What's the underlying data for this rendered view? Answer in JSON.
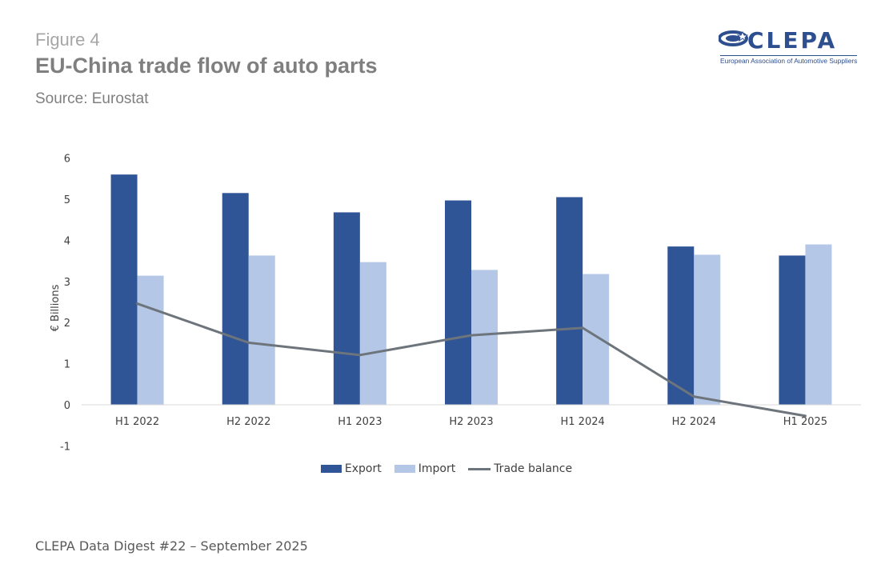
{
  "header": {
    "figure_label": "Figure 4",
    "title": "EU-China trade flow of auto parts",
    "source": "Source: Eurostat"
  },
  "logo": {
    "name": "CLEPA",
    "tagline": "European Association of Automotive Suppliers"
  },
  "footer": {
    "text": "CLEPA Data Digest #22 – September 2025"
  },
  "colors": {
    "export": "#2f5597",
    "import": "#b4c7e7",
    "balance": "#6d747b",
    "axis": "#d9d9d9",
    "text": "#404040"
  },
  "chart_data": {
    "type": "bar",
    "title": "EU-China trade flow of auto parts",
    "xlabel": "",
    "ylabel": "€ Billions",
    "ylim": [
      -1,
      6
    ],
    "yticks": [
      -1,
      0,
      1,
      2,
      3,
      4,
      5,
      6
    ],
    "grid": false,
    "legend_position": "bottom",
    "categories": [
      "H1 2022",
      "H2 2022",
      "H1 2023",
      "H2 2023",
      "H1 2024",
      "H2 2024",
      "H1 2025"
    ],
    "series": [
      {
        "name": "Export",
        "type": "bar",
        "values": [
          5.6,
          5.15,
          4.68,
          4.97,
          5.05,
          3.85,
          3.63
        ]
      },
      {
        "name": "Import",
        "type": "bar",
        "values": [
          3.14,
          3.63,
          3.47,
          3.28,
          3.18,
          3.65,
          3.9
        ]
      },
      {
        "name": "Trade balance",
        "type": "line",
        "values": [
          2.46,
          1.51,
          1.21,
          1.69,
          1.87,
          0.2,
          -0.27
        ]
      }
    ]
  }
}
